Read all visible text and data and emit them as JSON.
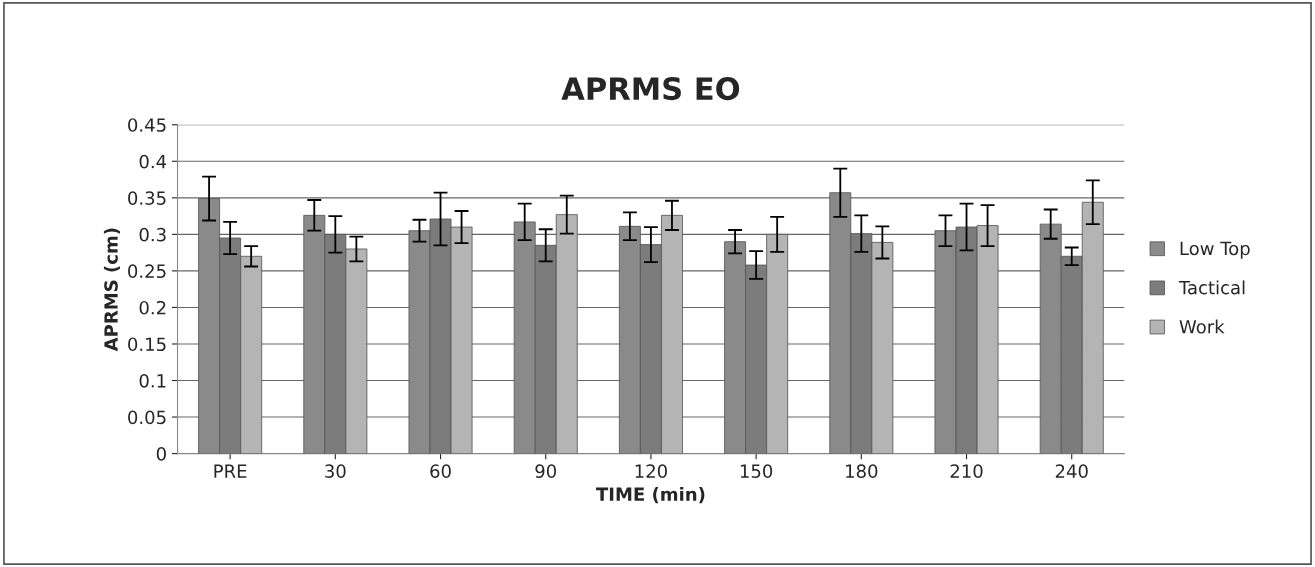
{
  "chart_data": {
    "type": "bar",
    "title": "APRMS EO",
    "xlabel": "TIME (min)",
    "ylabel": "APRMS (cm)",
    "categories": [
      "PRE",
      "30",
      "60",
      "90",
      "120",
      "150",
      "180",
      "210",
      "240"
    ],
    "series": [
      {
        "name": "Low Top",
        "color": "#8a8a8a",
        "values": [
          0.349,
          0.326,
          0.305,
          0.317,
          0.311,
          0.29,
          0.357,
          0.305,
          0.314
        ],
        "errors": [
          0.03,
          0.021,
          0.015,
          0.025,
          0.019,
          0.016,
          0.033,
          0.021,
          0.02
        ]
      },
      {
        "name": "Tactical",
        "color": "#7c7c7c",
        "values": [
          0.295,
          0.3,
          0.321,
          0.285,
          0.286,
          0.258,
          0.301,
          0.31,
          0.27
        ],
        "errors": [
          0.022,
          0.025,
          0.036,
          0.022,
          0.024,
          0.019,
          0.025,
          0.032,
          0.012
        ]
      },
      {
        "name": "Work",
        "color": "#b4b4b4",
        "values": [
          0.27,
          0.28,
          0.31,
          0.327,
          0.326,
          0.3,
          0.289,
          0.312,
          0.344
        ],
        "errors": [
          0.014,
          0.017,
          0.022,
          0.026,
          0.02,
          0.024,
          0.022,
          0.028,
          0.03
        ]
      }
    ],
    "ylim": [
      0,
      0.45
    ],
    "yticks": [
      {
        "value": 0,
        "label": "0"
      },
      0.05,
      0.1,
      0.15,
      0.2,
      0.25,
      0.3,
      0.35,
      0.4,
      0.45
    ],
    "grid": "y",
    "legend": "right"
  }
}
